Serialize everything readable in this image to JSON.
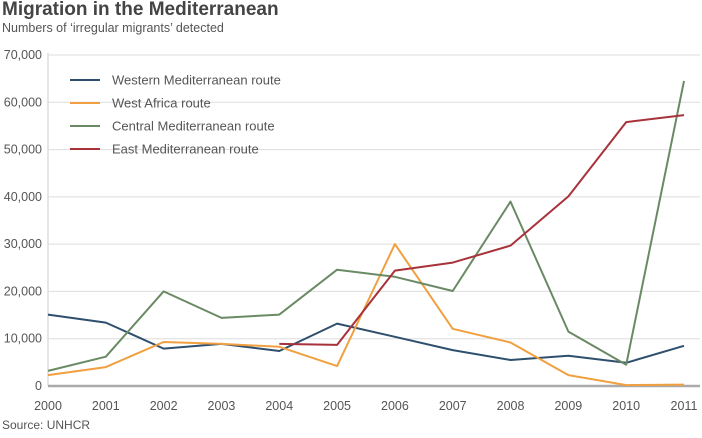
{
  "title": "Migration in the Mediterranean",
  "subtitle": "Numbers of ‘irregular migrants’ detected",
  "source": "Source: UNHCR",
  "chart_data": {
    "type": "line",
    "title": "Migration in the Mediterranean",
    "subtitle": "Numbers of ‘irregular migrants’ detected",
    "x": [
      2000,
      2001,
      2002,
      2003,
      2004,
      2005,
      2006,
      2007,
      2008,
      2009,
      2010,
      2011
    ],
    "ylim": [
      0,
      70000
    ],
    "yticks": [
      0,
      10000,
      20000,
      30000,
      40000,
      50000,
      60000,
      70000
    ],
    "ytick_labels": [
      "0",
      "10,000",
      "20,000",
      "30,000",
      "40,000",
      "50,000",
      "60,000",
      "70,000"
    ],
    "grid": true,
    "legend_position": "top-left",
    "series": [
      {
        "name": "Western Mediterranean route",
        "color": "#2e4f6e",
        "values": [
          15100,
          13400,
          7900,
          8900,
          7400,
          13200,
          10400,
          7600,
          5500,
          6400,
          4900,
          8500
        ]
      },
      {
        "name": "West Africa route",
        "color": "#f0a040",
        "values": [
          2300,
          4000,
          9300,
          8900,
          8300,
          4200,
          30000,
          12100,
          9200,
          2300,
          200,
          300
        ]
      },
      {
        "name": "Central Mediterranean route",
        "color": "#6a8a64",
        "values": [
          3200,
          6200,
          20000,
          14400,
          15100,
          24600,
          23100,
          20100,
          39000,
          11500,
          4500,
          64500
        ]
      },
      {
        "name": "East Mediterranean route",
        "color": "#a8323a",
        "values": [
          null,
          null,
          null,
          null,
          8900,
          8700,
          24400,
          26100,
          29700,
          40100,
          55800,
          57300
        ]
      }
    ]
  }
}
